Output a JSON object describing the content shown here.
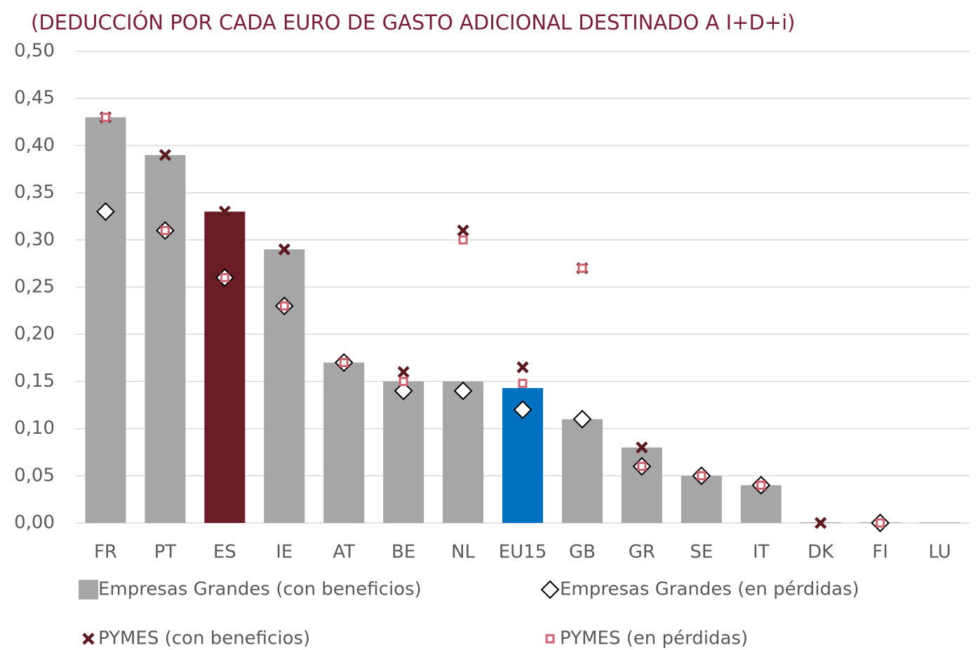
{
  "chart_data": {
    "type": "bar",
    "title": "(DEDUCCIÓN POR CADA EURO DE GASTO ADICIONAL DESTINADO A I+D+i)",
    "categories": [
      "FR",
      "PT",
      "ES",
      "IE",
      "AT",
      "BE",
      "NL",
      "EU15",
      "GB",
      "GR",
      "SE",
      "IT",
      "DK",
      "FI",
      "LU"
    ],
    "series": [
      {
        "name": "Empresas Grandes (con beneficios)",
        "marker": "bar",
        "color": "#a6a6a6",
        "colors": [
          "#a6a6a6",
          "#a6a6a6",
          "#6b1d25",
          "#a6a6a6",
          "#a6a6a6",
          "#a6a6a6",
          "#a6a6a6",
          "#0070c0",
          "#a6a6a6",
          "#a6a6a6",
          "#a6a6a6",
          "#a6a6a6",
          "#a6a6a6",
          "#a6a6a6",
          "#a6a6a6"
        ],
        "values": [
          0.43,
          0.39,
          0.33,
          0.29,
          0.17,
          0.15,
          0.15,
          0.143,
          0.11,
          0.08,
          0.05,
          0.04,
          0,
          0,
          0
        ]
      },
      {
        "name": "Empresas Grandes (en pérdidas)",
        "marker": "diamond",
        "color": "#000000",
        "values": [
          0.33,
          0.31,
          0.26,
          0.23,
          0.17,
          0.14,
          0.14,
          0.12,
          0.11,
          0.06,
          0.05,
          0.04,
          null,
          0,
          null
        ]
      },
      {
        "name": "PYMES (con beneficios)",
        "marker": "x",
        "color": "#5c1a1f",
        "values": [
          0.43,
          0.39,
          0.33,
          0.29,
          0.17,
          0.16,
          0.31,
          0.165,
          0.27,
          0.08,
          0.05,
          0.04,
          0,
          null,
          null
        ]
      },
      {
        "name": "PYMES (en pérdidas)",
        "marker": "square",
        "color": "#d0626e",
        "values": [
          0.43,
          0.31,
          0.26,
          0.23,
          0.17,
          0.15,
          0.3,
          0.148,
          0.27,
          0.06,
          0.05,
          0.04,
          null,
          0,
          null
        ]
      }
    ],
    "ylim": [
      0,
      0.5
    ],
    "yticks": [
      {
        "value": 0,
        "label": "0,00"
      },
      {
        "value": 0.05,
        "label": "0,05"
      },
      {
        "value": 0.1,
        "label": "0,10"
      },
      {
        "value": 0.15,
        "label": "0,15"
      },
      {
        "value": 0.2,
        "label": "0,20"
      },
      {
        "value": 0.25,
        "label": "0,25"
      },
      {
        "value": 0.3,
        "label": "0,30"
      },
      {
        "value": 0.35,
        "label": "0,35"
      },
      {
        "value": 0.4,
        "label": "0,40"
      },
      {
        "value": 0.45,
        "label": "0,45"
      },
      {
        "value": 0.5,
        "label": "0,50"
      }
    ],
    "grid": true
  }
}
